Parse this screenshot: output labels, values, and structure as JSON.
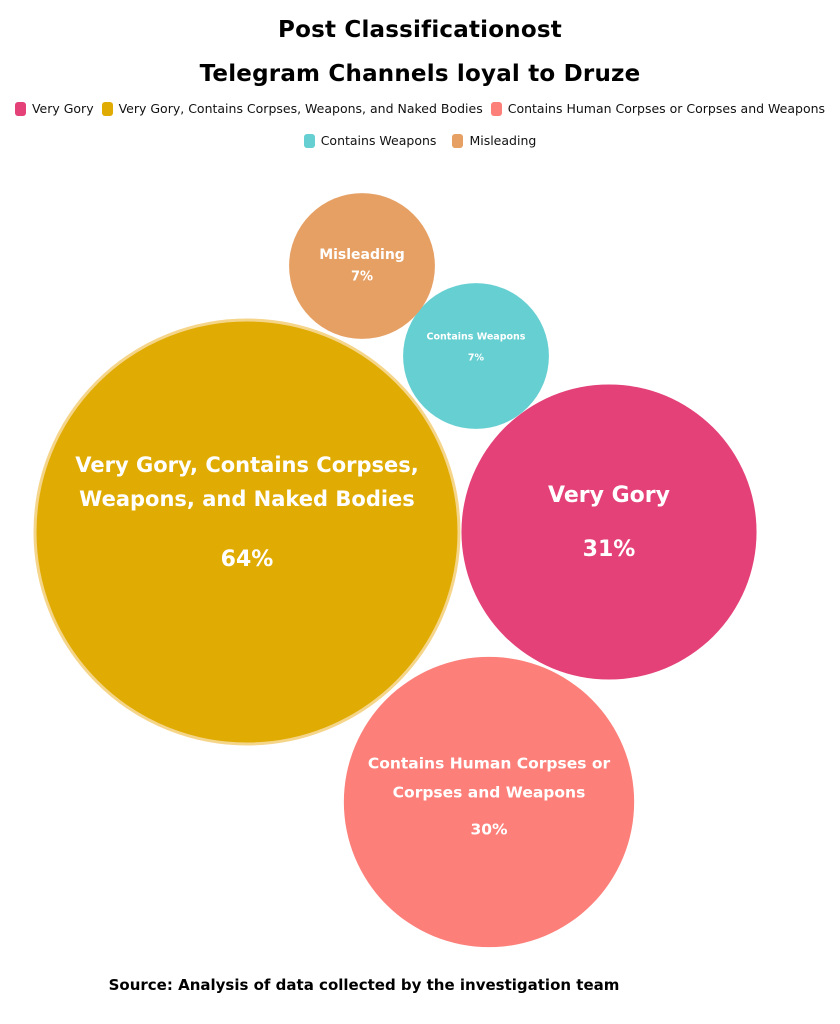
{
  "chart_data": {
    "type": "bubble",
    "title": [
      "Post Classificationost",
      "Telegram Channels loyal to Druze"
    ],
    "legend_placement": "top-center",
    "series": [
      {
        "name": "Very Gory",
        "label_lines": [
          "Very Gory"
        ],
        "value": 31,
        "value_label": "31%",
        "color": "#e44179"
      },
      {
        "name": "Very Gory, Contains Corpses, Weapons, and Naked Bodies",
        "label_lines": [
          "Very Gory, Contains Corpses,",
          "Weapons, and Naked Bodies"
        ],
        "value": 64,
        "value_label": "64%",
        "color": "#e0ac03"
      },
      {
        "name": "Contains Human Corpses or Corpses and Weapons",
        "label_lines": [
          "Contains Human Corpses or",
          "Corpses and Weapons"
        ],
        "value": 30,
        "value_label": "30%",
        "color": "#fd7f79"
      },
      {
        "name": "Contains Weapons",
        "label_lines": [
          "Contains Weapons"
        ],
        "value": 7,
        "value_label": "7%",
        "color": "#66cfd2"
      },
      {
        "name": "Misleading",
        "label_lines": [
          "Misleading"
        ],
        "value": 7,
        "value_label": "7%",
        "color": "#e6a064"
      }
    ]
  },
  "footer": {
    "source": "Source: Analysis of data collected by the investigation team"
  }
}
